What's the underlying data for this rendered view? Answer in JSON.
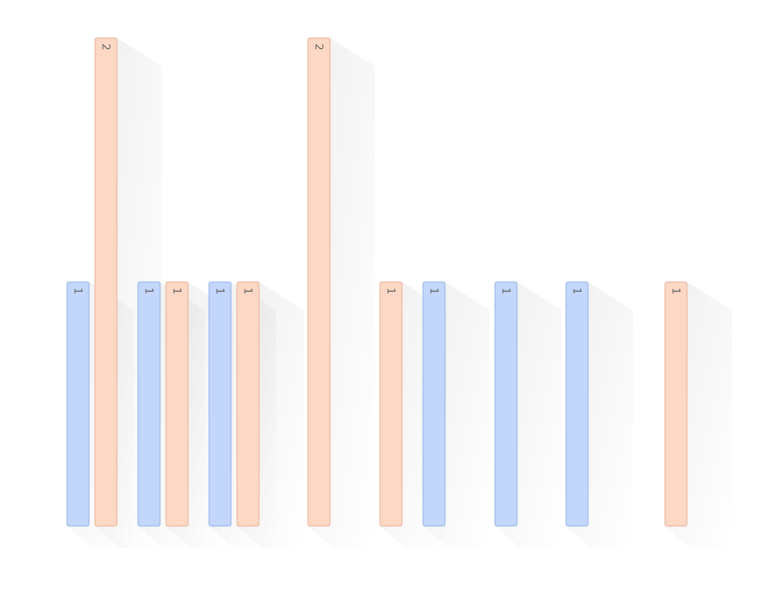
{
  "chart_data": {
    "type": "bar",
    "title": "",
    "xlabel": "",
    "ylabel": "",
    "ylim": [
      0,
      2
    ],
    "grid": false,
    "legend": "none",
    "bars": [
      {
        "series": "blue",
        "value": 1,
        "label": "1"
      },
      {
        "series": "orange",
        "value": 2,
        "label": "2"
      },
      {
        "series": "blue",
        "value": 1,
        "label": "1"
      },
      {
        "series": "orange",
        "value": 1,
        "label": "1"
      },
      {
        "series": "blue",
        "value": 1,
        "label": "1"
      },
      {
        "series": "orange",
        "value": 1,
        "label": "1"
      },
      {
        "series": "orange",
        "value": 2,
        "label": "2"
      },
      {
        "series": "orange",
        "value": 1,
        "label": "1"
      },
      {
        "series": "blue",
        "value": 1,
        "label": "1"
      },
      {
        "series": "blue",
        "value": 1,
        "label": "1"
      },
      {
        "series": "blue",
        "value": 1,
        "label": "1"
      },
      {
        "series": "orange",
        "value": 1,
        "label": "1"
      }
    ],
    "colors": {
      "blue_fill": "#c2d7fb",
      "blue_stroke": "#9db9ea",
      "orange_fill": "#fdd8c4",
      "orange_stroke": "#e9b99e"
    }
  }
}
